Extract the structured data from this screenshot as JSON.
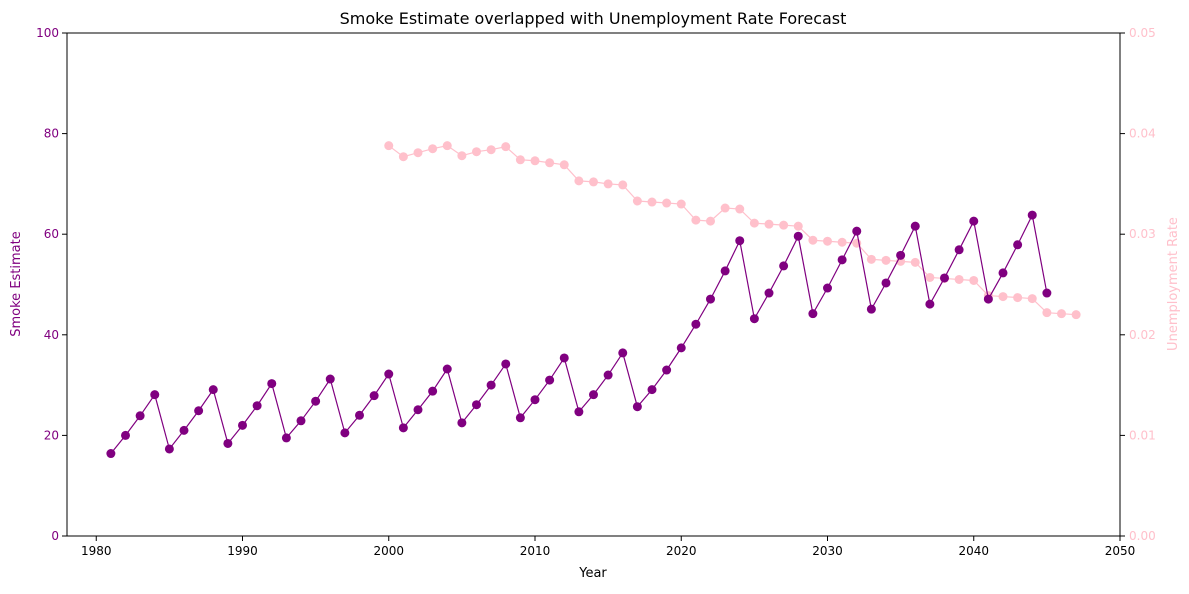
{
  "chart_data": {
    "type": "line",
    "title": "Smoke Estimate overlapped with Unemployment Rate Forecast",
    "xlabel": "Year",
    "ylabel_left": "Smoke Estimate",
    "ylabel_right": "Unemployment Rate",
    "xlim": [
      1978,
      2050
    ],
    "ylim_left": [
      0,
      100
    ],
    "ylim_right": [
      0.0,
      0.05
    ],
    "x_ticks": [
      1980,
      1990,
      2000,
      2010,
      2020,
      2030,
      2040,
      2050
    ],
    "y_ticks_left": [
      0,
      20,
      40,
      60,
      80,
      100
    ],
    "y_ticks_right": [
      "0.00",
      "0.01",
      "0.02",
      "0.03",
      "0.04",
      "0.05"
    ],
    "grid": false,
    "colors": {
      "smoke": "#800080",
      "unemployment": "#ffc0cb",
      "axis": "#000000"
    },
    "series": [
      {
        "axis": "left",
        "color": "#800080",
        "x": [
          1981,
          1982,
          1983,
          1984,
          1985,
          1986,
          1987,
          1988,
          1989,
          1990,
          1991,
          1992,
          1993,
          1994,
          1995,
          1996,
          1997,
          1998,
          1999,
          2000,
          2001,
          2002,
          2003,
          2004,
          2005,
          2006,
          2007,
          2008,
          2009,
          2010,
          2011,
          2012,
          2013,
          2014,
          2015,
          2016,
          2017,
          2018,
          2019,
          2020,
          2021,
          2022,
          2023,
          2024,
          2025,
          2026,
          2027,
          2028,
          2029,
          2030,
          2031,
          2032,
          2033,
          2034,
          2035,
          2036,
          2037,
          2038,
          2039,
          2040,
          2041,
          2042,
          2043,
          2044,
          2045
        ],
        "values": [
          16.4,
          20.0,
          23.9,
          28.1,
          17.3,
          21.0,
          24.9,
          29.1,
          18.4,
          22.0,
          25.9,
          30.3,
          19.5,
          22.9,
          26.8,
          31.2,
          20.5,
          24.0,
          27.9,
          32.2,
          21.5,
          25.1,
          28.8,
          33.2,
          22.5,
          26.1,
          30.0,
          34.2,
          23.5,
          27.1,
          31.0,
          35.4,
          24.7,
          28.1,
          32.0,
          36.4,
          25.7,
          29.1,
          33.0,
          37.4,
          42.1,
          47.1,
          52.7,
          58.7,
          43.2,
          48.3,
          53.7,
          59.6,
          44.2,
          49.3,
          54.9,
          60.6,
          45.1,
          50.3,
          55.8,
          61.6,
          46.1,
          51.3,
          56.9,
          62.6,
          47.1,
          52.3,
          57.9,
          63.8,
          48.3
        ]
      },
      {
        "axis": "right",
        "color": "#ffc0cb",
        "x": [
          2000,
          2001,
          2002,
          2003,
          2004,
          2005,
          2006,
          2007,
          2008,
          2009,
          2010,
          2011,
          2012,
          2013,
          2014,
          2015,
          2016,
          2017,
          2018,
          2019,
          2020,
          2021,
          2022,
          2023,
          2024,
          2025,
          2026,
          2027,
          2028,
          2029,
          2030,
          2031,
          2032,
          2033,
          2034,
          2035,
          2036,
          2037,
          2038,
          2039,
          2040,
          2041,
          2042,
          2043,
          2044,
          2045,
          2046,
          2047
        ],
        "values": [
          0.0388,
          0.0377,
          0.0381,
          0.0385,
          0.0388,
          0.0378,
          0.0382,
          0.0384,
          0.0387,
          0.0374,
          0.0373,
          0.0371,
          0.0369,
          0.0353,
          0.0352,
          0.035,
          0.0349,
          0.0333,
          0.0332,
          0.0331,
          0.033,
          0.0314,
          0.0313,
          0.0326,
          0.0325,
          0.0311,
          0.031,
          0.0309,
          0.0308,
          0.0294,
          0.0293,
          0.0292,
          0.0291,
          0.0275,
          0.0274,
          0.0273,
          0.0272,
          0.0257,
          0.0256,
          0.0255,
          0.0254,
          0.0239,
          0.0238,
          0.0237,
          0.0236,
          0.0222,
          0.0221,
          0.022
        ]
      }
    ]
  }
}
